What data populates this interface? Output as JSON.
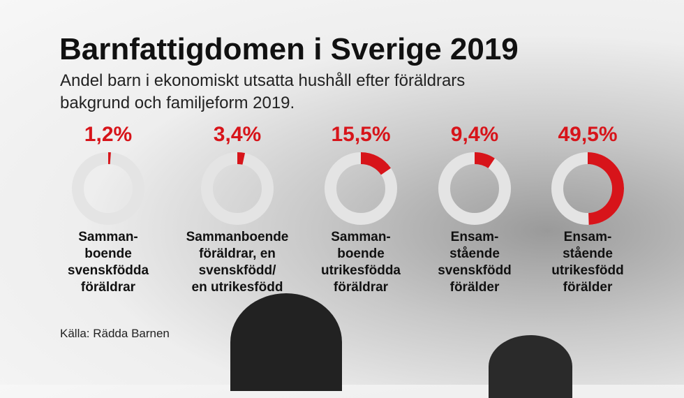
{
  "chart_data": {
    "type": "donut",
    "title": "Barnfattigdomen i Sverige 2019",
    "subtitle": "Andel barn i ekonomiskt utsatta hushåll efter föräldrars\nbakgrund och familjeform 2019.",
    "categories": [
      "Samman-\nboende\nsvenskfödda\nföräldrar",
      "Sammanboende\nföräldrar, en\nsvenskfödd/\nen utrikesfödd",
      "Samman-\nboende\nutrikesfödda\nföräldrar",
      "Ensam-\nstående\nsvenskfödd\nförälder",
      "Ensam-\nstående\nutrikesfödd\nförälder"
    ],
    "values": [
      1.2,
      3.4,
      15.5,
      9.4,
      49.5
    ],
    "value_labels": [
      "1,2%",
      "3,4%",
      "15,5%",
      "9,4%",
      "49,5%"
    ],
    "color": "#d7141a",
    "source": "Källa: Rädda Barnen"
  }
}
